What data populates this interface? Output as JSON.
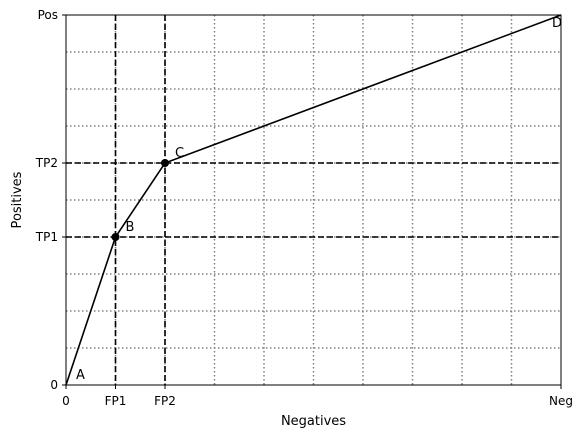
{
  "chart_data": {
    "type": "line",
    "xlabel": "Negatives",
    "ylabel": "Positives",
    "xlim": [
      0,
      10
    ],
    "ylim": [
      0,
      10
    ],
    "x_ticks": [
      {
        "value": 0,
        "label": "0"
      },
      {
        "value": 1,
        "label": "FP1"
      },
      {
        "value": 2,
        "label": "FP2"
      },
      {
        "value": 10,
        "label": "Neg"
      }
    ],
    "y_ticks": [
      {
        "value": 0,
        "label": "0"
      },
      {
        "value": 4,
        "label": "TP1"
      },
      {
        "value": 6,
        "label": "TP2"
      },
      {
        "value": 10,
        "label": "Pos"
      }
    ],
    "grid": {
      "style": "dotted",
      "x": [
        1,
        2,
        3,
        4,
        5,
        6,
        7,
        8,
        9
      ],
      "y": [
        1,
        2,
        3,
        4,
        5,
        6,
        7,
        8,
        9
      ]
    },
    "reference_lines": {
      "style": "dashed",
      "x": [
        1,
        2
      ],
      "y": [
        4,
        6
      ]
    },
    "series": [
      {
        "color": "#000000",
        "points": [
          {
            "x": 0,
            "y": 0,
            "label": "A",
            "marker": false
          },
          {
            "x": 1,
            "y": 4,
            "label": "B",
            "marker": true
          },
          {
            "x": 2,
            "y": 6,
            "label": "C",
            "marker": true
          },
          {
            "x": 10,
            "y": 10,
            "label": "D",
            "marker": false
          }
        ]
      }
    ],
    "colors": {
      "line": "#000000",
      "grid": "#808080",
      "reference": "#000000",
      "background": "#ffffff"
    }
  }
}
